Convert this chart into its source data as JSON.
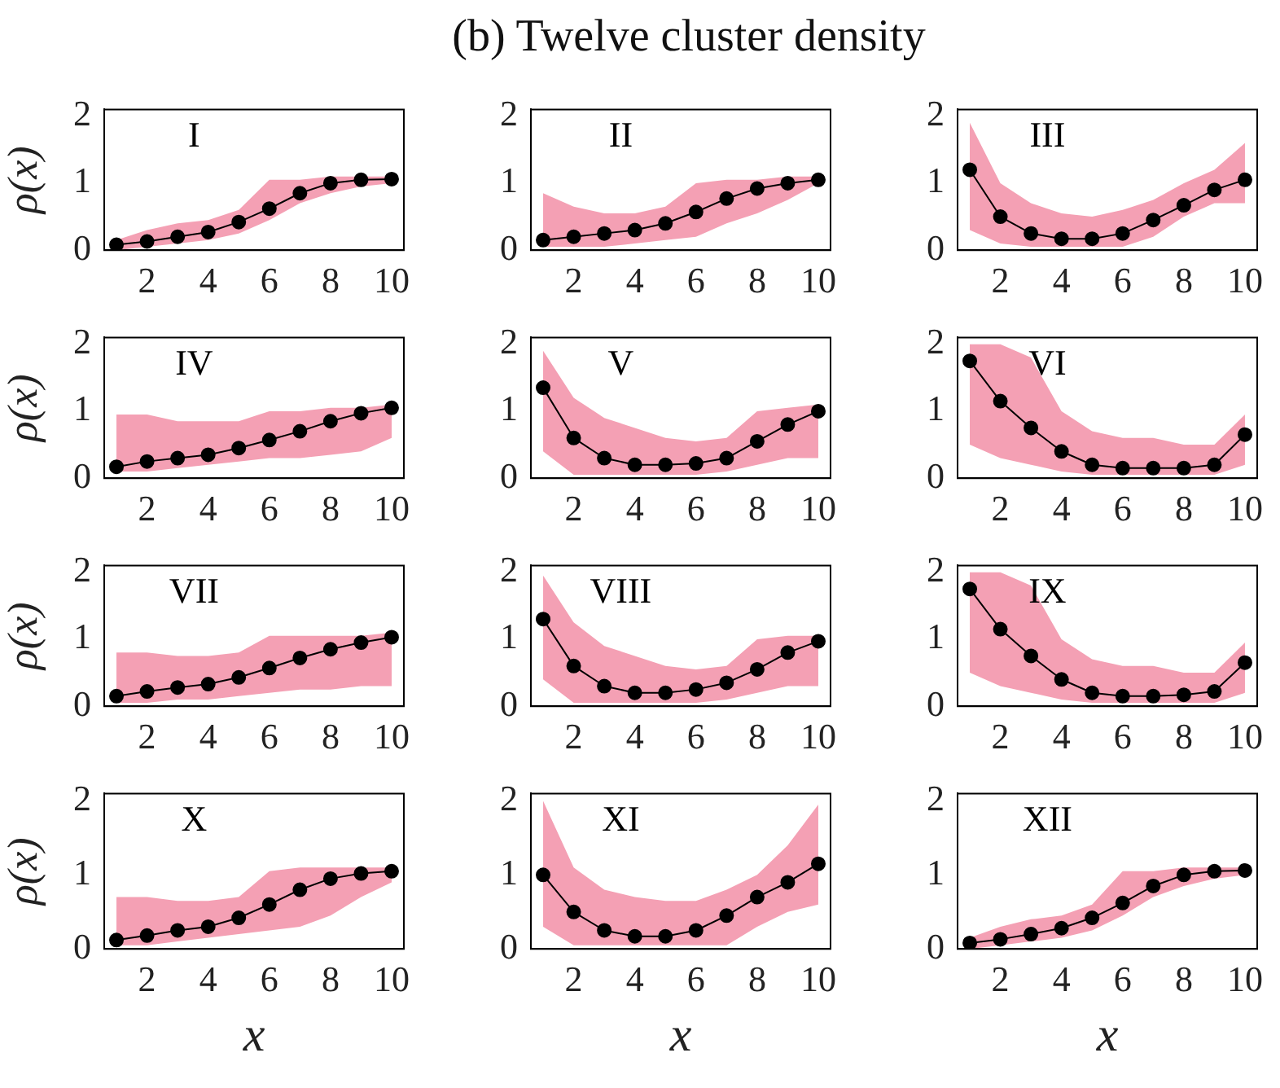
{
  "chart_data": [
    {
      "type": "line",
      "title": "I",
      "annotations": [
        "(b) Twelve cluster density"
      ],
      "ylabel": "ρ(x)",
      "x": [
        1,
        2,
        3,
        4,
        5,
        6,
        7,
        8,
        9,
        10
      ],
      "xlim": [
        0.6,
        10.4
      ],
      "xticks": [
        2,
        4,
        6,
        8,
        10
      ],
      "ylim": [
        0,
        2.1
      ],
      "yticks": [
        0,
        1,
        2
      ],
      "grid": false,
      "legend": false,
      "marker": "circle",
      "line_style": "solid",
      "series": [
        {
          "color": "#000000",
          "values": [
            0.08,
            0.13,
            0.2,
            0.27,
            0.42,
            0.62,
            0.85,
            1.0,
            1.05,
            1.06
          ],
          "lower": [
            0,
            0.05,
            0.1,
            0.15,
            0.25,
            0.45,
            0.7,
            0.85,
            0.95,
            1.0
          ],
          "upper": [
            0.15,
            0.3,
            0.4,
            0.45,
            0.6,
            1.05,
            1.05,
            1.1,
            1.1,
            1.1
          ]
        }
      ]
    },
    {
      "type": "line",
      "title": "II",
      "x": [
        1,
        2,
        3,
        4,
        5,
        6,
        7,
        8,
        9,
        10
      ],
      "xlim": [
        0.6,
        10.4
      ],
      "xticks": [
        2,
        4,
        6,
        8,
        10
      ],
      "ylim": [
        0,
        2.1
      ],
      "yticks": [
        0,
        1,
        2
      ],
      "grid": false,
      "legend": false,
      "marker": "circle",
      "line_style": "solid",
      "series": [
        {
          "color": "#000000",
          "values": [
            0.15,
            0.2,
            0.25,
            0.3,
            0.4,
            0.57,
            0.77,
            0.92,
            1.0,
            1.05
          ],
          "lower": [
            0.05,
            0.05,
            0.05,
            0.1,
            0.15,
            0.2,
            0.4,
            0.55,
            0.75,
            1.0
          ],
          "upper": [
            0.85,
            0.65,
            0.55,
            0.55,
            0.65,
            1.0,
            1.05,
            1.05,
            1.1,
            1.1
          ]
        }
      ]
    },
    {
      "type": "line",
      "title": "III",
      "x": [
        1,
        2,
        3,
        4,
        5,
        6,
        7,
        8,
        9,
        10
      ],
      "xlim": [
        0.6,
        10.4
      ],
      "xticks": [
        2,
        4,
        6,
        8,
        10
      ],
      "ylim": [
        0,
        2.1
      ],
      "yticks": [
        0,
        1,
        2
      ],
      "grid": false,
      "legend": false,
      "marker": "circle",
      "line_style": "solid",
      "series": [
        {
          "color": "#000000",
          "values": [
            1.2,
            0.5,
            0.25,
            0.17,
            0.17,
            0.25,
            0.45,
            0.67,
            0.9,
            1.05
          ],
          "lower": [
            0.3,
            0.1,
            0.05,
            0.05,
            0.05,
            0.05,
            0.2,
            0.5,
            0.7,
            0.7
          ],
          "upper": [
            1.9,
            1.0,
            0.7,
            0.55,
            0.5,
            0.6,
            0.75,
            1.0,
            1.2,
            1.6
          ]
        }
      ]
    },
    {
      "type": "line",
      "title": "IV",
      "ylabel": "ρ(x)",
      "x": [
        1,
        2,
        3,
        4,
        5,
        6,
        7,
        8,
        9,
        10
      ],
      "xlim": [
        0.6,
        10.4
      ],
      "xticks": [
        2,
        4,
        6,
        8,
        10
      ],
      "ylim": [
        0,
        2.1
      ],
      "yticks": [
        0,
        1,
        2
      ],
      "grid": false,
      "legend": false,
      "marker": "circle",
      "line_style": "solid",
      "series": [
        {
          "color": "#000000",
          "values": [
            0.17,
            0.25,
            0.3,
            0.35,
            0.45,
            0.57,
            0.7,
            0.85,
            0.97,
            1.05
          ],
          "lower": [
            0.1,
            0.1,
            0.15,
            0.2,
            0.25,
            0.3,
            0.3,
            0.35,
            0.4,
            0.6
          ],
          "upper": [
            0.95,
            0.95,
            0.85,
            0.85,
            0.85,
            1.0,
            1.0,
            1.05,
            1.05,
            1.1
          ]
        }
      ]
    },
    {
      "type": "line",
      "title": "V",
      "x": [
        1,
        2,
        3,
        4,
        5,
        6,
        7,
        8,
        9,
        10
      ],
      "xlim": [
        0.6,
        10.4
      ],
      "xticks": [
        2,
        4,
        6,
        8,
        10
      ],
      "ylim": [
        0,
        2.1
      ],
      "yticks": [
        0,
        1,
        2
      ],
      "grid": false,
      "legend": false,
      "marker": "circle",
      "line_style": "solid",
      "series": [
        {
          "color": "#000000",
          "values": [
            1.35,
            0.6,
            0.3,
            0.2,
            0.2,
            0.22,
            0.3,
            0.55,
            0.8,
            1.0
          ],
          "lower": [
            0.4,
            0.05,
            0.05,
            0.05,
            0.05,
            0.05,
            0.1,
            0.2,
            0.3,
            0.3
          ],
          "upper": [
            1.9,
            1.2,
            0.9,
            0.75,
            0.6,
            0.55,
            0.6,
            1.0,
            1.05,
            1.1
          ]
        }
      ]
    },
    {
      "type": "line",
      "title": "VI",
      "x": [
        1,
        2,
        3,
        4,
        5,
        6,
        7,
        8,
        9,
        10
      ],
      "xlim": [
        0.6,
        10.4
      ],
      "xticks": [
        2,
        4,
        6,
        8,
        10
      ],
      "ylim": [
        0,
        2.1
      ],
      "yticks": [
        0,
        1,
        2
      ],
      "grid": false,
      "legend": false,
      "marker": "circle",
      "line_style": "solid",
      "series": [
        {
          "color": "#000000",
          "values": [
            1.75,
            1.15,
            0.75,
            0.4,
            0.2,
            0.15,
            0.15,
            0.15,
            0.2,
            0.65
          ],
          "lower": [
            0.5,
            0.3,
            0.2,
            0.1,
            0.05,
            0.05,
            0.05,
            0.05,
            0.05,
            0.2
          ],
          "upper": [
            2.0,
            2.0,
            1.8,
            1.0,
            0.7,
            0.6,
            0.6,
            0.5,
            0.5,
            0.95
          ]
        }
      ]
    },
    {
      "type": "line",
      "title": "VII",
      "ylabel": "ρ(x)",
      "x": [
        1,
        2,
        3,
        4,
        5,
        6,
        7,
        8,
        9,
        10
      ],
      "xlim": [
        0.6,
        10.4
      ],
      "xticks": [
        2,
        4,
        6,
        8,
        10
      ],
      "ylim": [
        0,
        2.1
      ],
      "yticks": [
        0,
        1,
        2
      ],
      "grid": false,
      "legend": false,
      "marker": "circle",
      "line_style": "solid",
      "series": [
        {
          "color": "#000000",
          "values": [
            0.15,
            0.22,
            0.28,
            0.33,
            0.43,
            0.57,
            0.72,
            0.85,
            0.95,
            1.03
          ],
          "lower": [
            0.05,
            0.05,
            0.1,
            0.1,
            0.15,
            0.2,
            0.25,
            0.25,
            0.3,
            0.3
          ],
          "upper": [
            0.8,
            0.8,
            0.75,
            0.75,
            0.8,
            1.05,
            1.05,
            1.05,
            1.05,
            1.1
          ]
        }
      ]
    },
    {
      "type": "line",
      "title": "VIII",
      "x": [
        1,
        2,
        3,
        4,
        5,
        6,
        7,
        8,
        9,
        10
      ],
      "xlim": [
        0.6,
        10.4
      ],
      "xticks": [
        2,
        4,
        6,
        8,
        10
      ],
      "ylim": [
        0,
        2.1
      ],
      "yticks": [
        0,
        1,
        2
      ],
      "grid": false,
      "legend": false,
      "marker": "circle",
      "line_style": "solid",
      "series": [
        {
          "color": "#000000",
          "values": [
            1.3,
            0.6,
            0.3,
            0.2,
            0.2,
            0.25,
            0.35,
            0.55,
            0.8,
            0.97
          ],
          "lower": [
            0.4,
            0.05,
            0.05,
            0.05,
            0.05,
            0.05,
            0.1,
            0.2,
            0.3,
            0.3
          ],
          "upper": [
            1.95,
            1.25,
            0.9,
            0.75,
            0.6,
            0.55,
            0.6,
            1.0,
            1.05,
            1.05
          ]
        }
      ]
    },
    {
      "type": "line",
      "title": "IX",
      "x": [
        1,
        2,
        3,
        4,
        5,
        6,
        7,
        8,
        9,
        10
      ],
      "xlim": [
        0.6,
        10.4
      ],
      "xticks": [
        2,
        4,
        6,
        8,
        10
      ],
      "ylim": [
        0,
        2.1
      ],
      "yticks": [
        0,
        1,
        2
      ],
      "grid": false,
      "legend": false,
      "marker": "circle",
      "line_style": "solid",
      "series": [
        {
          "color": "#000000",
          "values": [
            1.75,
            1.15,
            0.75,
            0.4,
            0.2,
            0.15,
            0.15,
            0.17,
            0.22,
            0.65
          ],
          "lower": [
            0.5,
            0.3,
            0.2,
            0.1,
            0.05,
            0.05,
            0.05,
            0.05,
            0.05,
            0.2
          ],
          "upper": [
            2.0,
            2.0,
            1.8,
            1.0,
            0.7,
            0.6,
            0.6,
            0.5,
            0.5,
            0.95
          ]
        }
      ]
    },
    {
      "type": "line",
      "title": "X",
      "xlabel": "x",
      "ylabel": "ρ(x)",
      "x": [
        1,
        2,
        3,
        4,
        5,
        6,
        7,
        8,
        9,
        10
      ],
      "xlim": [
        0.6,
        10.4
      ],
      "xticks": [
        2,
        4,
        6,
        8,
        10
      ],
      "ylim": [
        0,
        2.1
      ],
      "yticks": [
        0,
        1,
        2
      ],
      "grid": false,
      "legend": false,
      "marker": "circle",
      "line_style": "solid",
      "series": [
        {
          "color": "#000000",
          "values": [
            0.12,
            0.18,
            0.25,
            0.3,
            0.42,
            0.6,
            0.8,
            0.95,
            1.02,
            1.05
          ],
          "lower": [
            0.05,
            0.05,
            0.1,
            0.15,
            0.2,
            0.25,
            0.3,
            0.45,
            0.7,
            0.9
          ],
          "upper": [
            0.7,
            0.7,
            0.65,
            0.65,
            0.7,
            1.05,
            1.1,
            1.1,
            1.1,
            1.1
          ]
        }
      ]
    },
    {
      "type": "line",
      "title": "XI",
      "xlabel": "x",
      "x": [
        1,
        2,
        3,
        4,
        5,
        6,
        7,
        8,
        9,
        10
      ],
      "xlim": [
        0.6,
        10.4
      ],
      "xticks": [
        2,
        4,
        6,
        8,
        10
      ],
      "ylim": [
        0,
        2.1
      ],
      "yticks": [
        0,
        1,
        2
      ],
      "grid": false,
      "legend": false,
      "marker": "circle",
      "line_style": "solid",
      "series": [
        {
          "color": "#000000",
          "values": [
            1.0,
            0.5,
            0.25,
            0.17,
            0.17,
            0.25,
            0.45,
            0.7,
            0.9,
            1.15
          ],
          "lower": [
            0.3,
            0.05,
            0.05,
            0.05,
            0.05,
            0.05,
            0.05,
            0.3,
            0.5,
            0.6
          ],
          "upper": [
            2.0,
            1.1,
            0.8,
            0.7,
            0.65,
            0.65,
            0.8,
            1.0,
            1.4,
            1.95
          ]
        }
      ]
    },
    {
      "type": "line",
      "title": "XII",
      "xlabel": "x",
      "x": [
        1,
        2,
        3,
        4,
        5,
        6,
        7,
        8,
        9,
        10
      ],
      "xlim": [
        0.6,
        10.4
      ],
      "xticks": [
        2,
        4,
        6,
        8,
        10
      ],
      "ylim": [
        0,
        2.1
      ],
      "yticks": [
        0,
        1,
        2
      ],
      "grid": false,
      "legend": false,
      "marker": "circle",
      "line_style": "solid",
      "series": [
        {
          "color": "#000000",
          "values": [
            0.08,
            0.13,
            0.2,
            0.28,
            0.42,
            0.62,
            0.85,
            1.0,
            1.05,
            1.06
          ],
          "lower": [
            0,
            0.05,
            0.1,
            0.15,
            0.25,
            0.45,
            0.7,
            0.85,
            0.95,
            1.0
          ],
          "upper": [
            0.15,
            0.3,
            0.4,
            0.45,
            0.6,
            1.05,
            1.05,
            1.1,
            1.1,
            1.1
          ]
        }
      ]
    }
  ]
}
